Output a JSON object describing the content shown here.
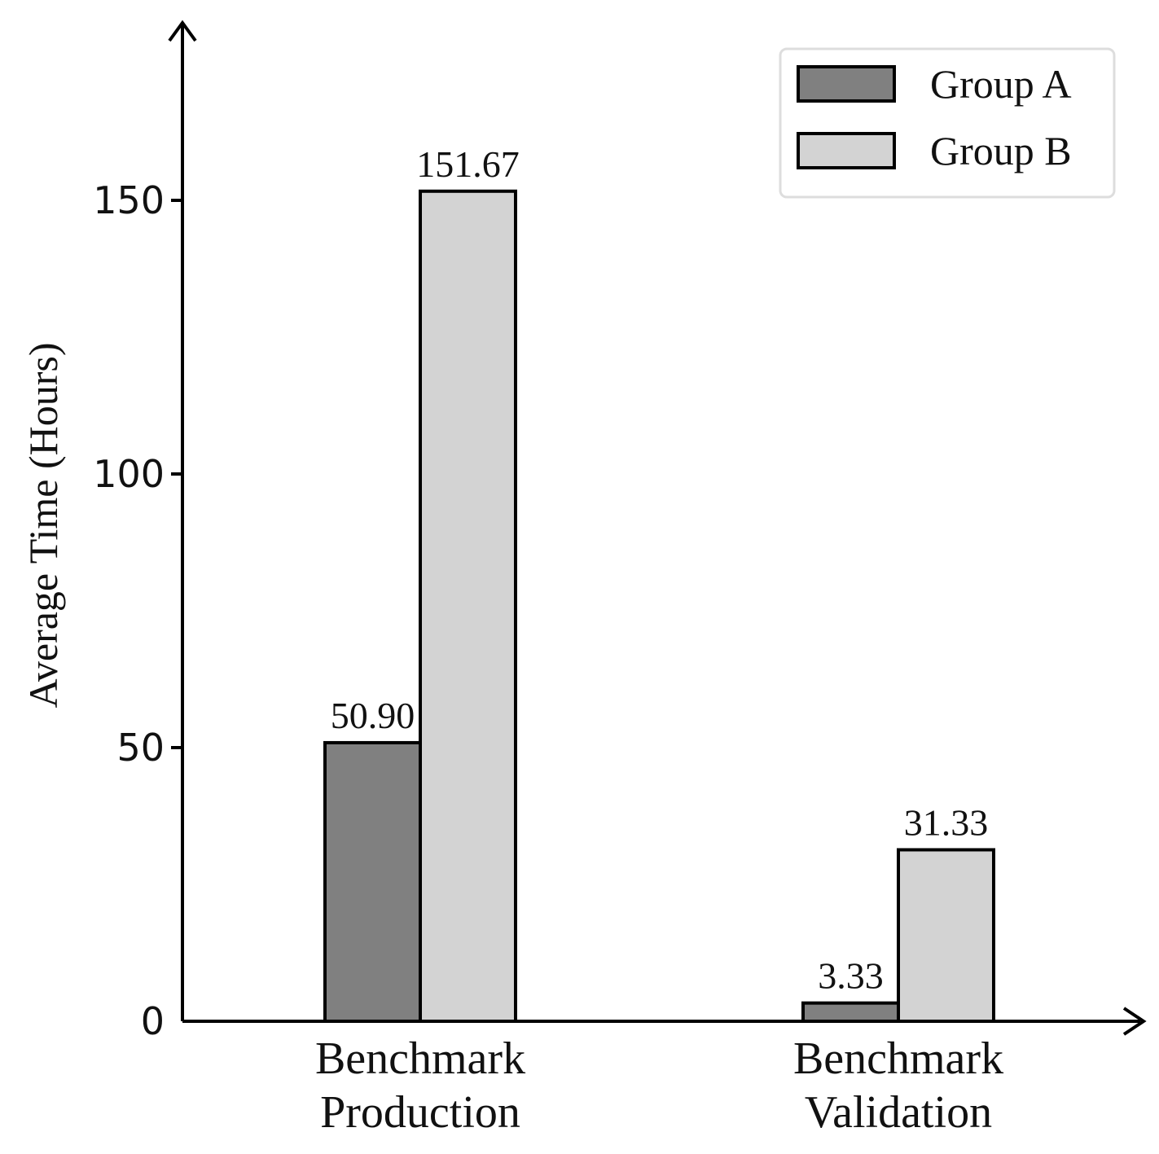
{
  "chart_data": {
    "type": "bar",
    "title": "",
    "xlabel": "",
    "ylabel": "Average Time (Hours)",
    "categories": [
      [
        "Benchmark",
        "Production"
      ],
      [
        "Benchmark",
        "Validation"
      ]
    ],
    "series": [
      {
        "name": "Group A",
        "color": "#808080",
        "values": [
          50.9,
          3.33
        ],
        "labels": [
          "50.90",
          "3.33"
        ]
      },
      {
        "name": "Group B",
        "color": "#d3d3d3",
        "values": [
          151.67,
          31.33
        ],
        "labels": [
          "151.67",
          "31.33"
        ]
      }
    ],
    "ylim": [
      0,
      180
    ],
    "yticks": [
      0,
      50,
      100,
      150
    ],
    "ytick_labels": [
      "0",
      "50",
      "100",
      "150"
    ],
    "grid": false,
    "legend_position": "top-right"
  }
}
